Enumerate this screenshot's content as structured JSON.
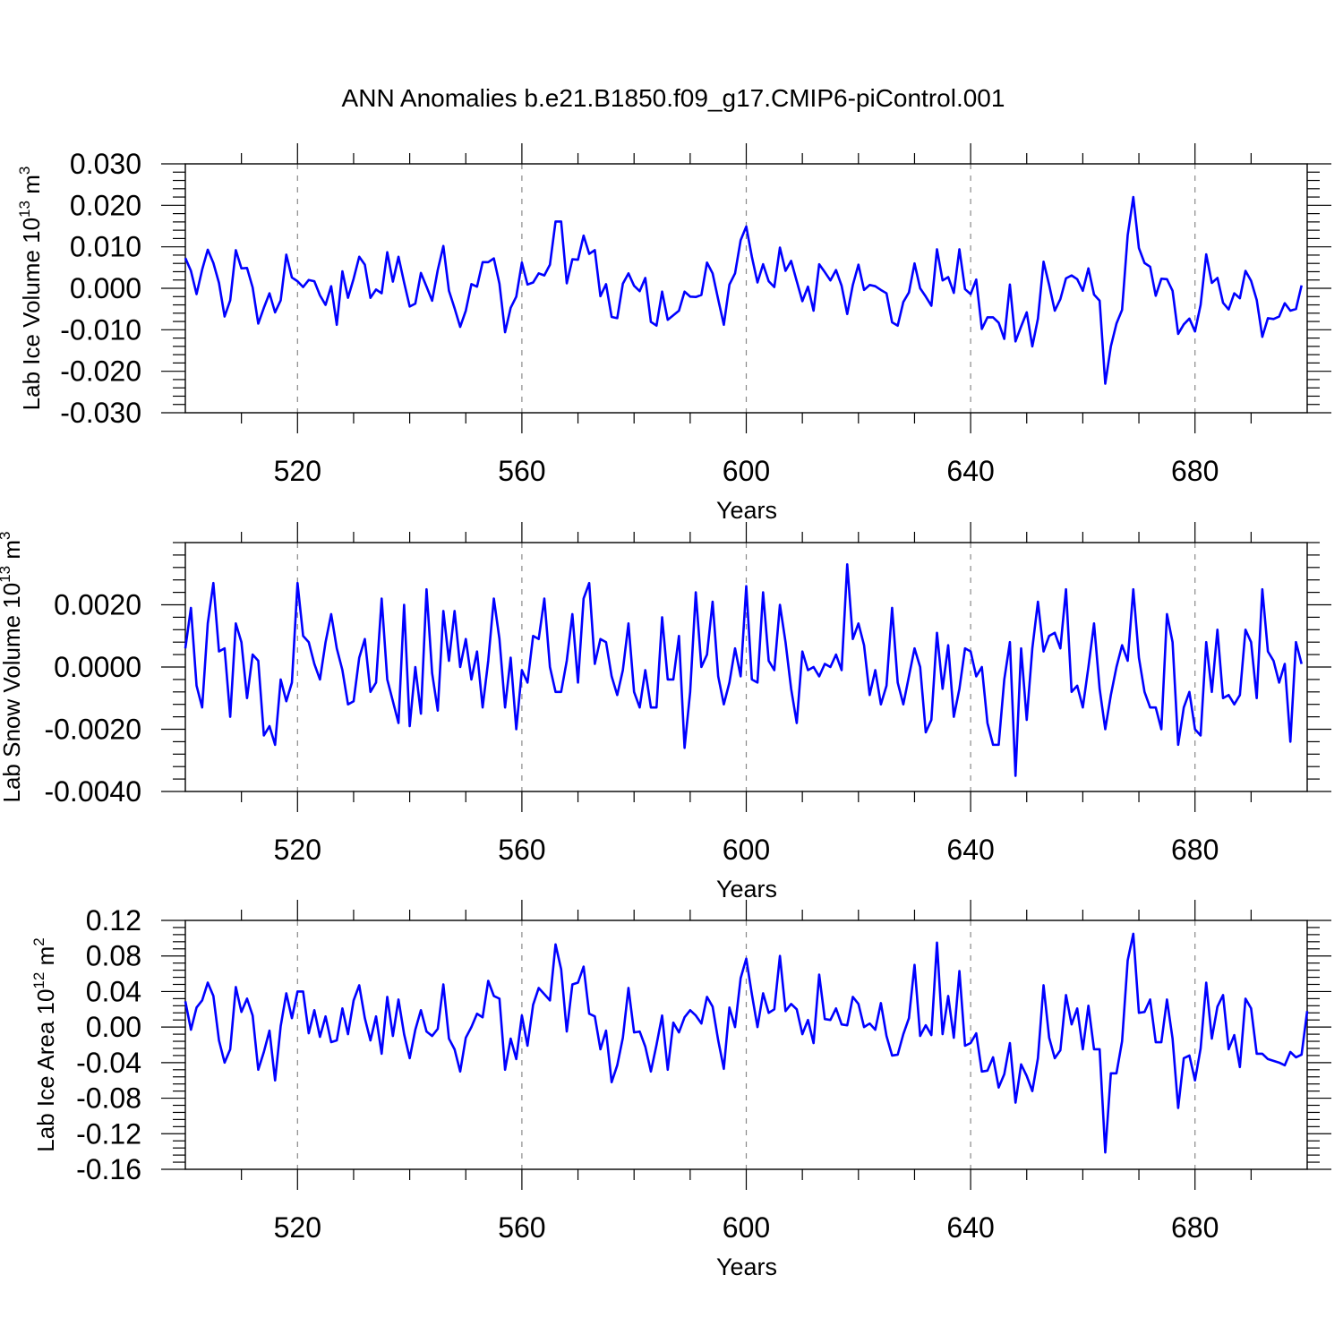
{
  "title": "ANN Anomalies b.e21.B1850.f09_g17.CMIP6-piControl.001",
  "colors": {
    "series": "#0000ff",
    "frame": "#000000",
    "grid": "#888888"
  },
  "chart_data": [
    {
      "type": "line",
      "ylabel_main": "Lab Ice Volume 10",
      "ylabel_exp": "13",
      "ylabel_unit": " m",
      "ylabel_unit_exp": "3",
      "xlabel": "Years",
      "xlim": [
        500,
        700
      ],
      "ylim": [
        -0.03,
        0.03
      ],
      "x_ticks": [
        520,
        560,
        600,
        640,
        680
      ],
      "x_tick_labels": [
        "520",
        "560",
        "600",
        "640",
        "680"
      ],
      "y_ticks": [
        -0.03,
        -0.02,
        -0.01,
        0.0,
        0.01,
        0.02,
        0.03
      ],
      "y_tick_labels": [
        "-0.030",
        "-0.020",
        "-0.010",
        "0.000",
        "0.010",
        "0.020",
        "0.030"
      ],
      "grid": "vertical dashed at x ticks",
      "series": [
        {
          "x_start": 500,
          "x_step": 1,
          "values": [
            0.0073,
            0.0042,
            -0.0014,
            0.0045,
            0.0093,
            0.0061,
            0.0013,
            -0.0068,
            -0.0029,
            0.0092,
            0.0048,
            0.0049,
            0.0002,
            -0.0085,
            -0.0047,
            -0.0012,
            -0.0058,
            -0.0029,
            0.0081,
            0.0026,
            0.0017,
            0.0003,
            0.002,
            0.0017,
            -0.0017,
            -0.004,
            0.0005,
            -0.0088,
            0.0041,
            -0.0023,
            0.0023,
            0.0076,
            0.0057,
            -0.0023,
            -0.0003,
            -0.0012,
            0.0087,
            0.0016,
            0.0076,
            0.0014,
            -0.0044,
            -0.0037,
            0.0037,
            0.0004,
            -0.003,
            0.0044,
            0.0102,
            -0.0006,
            -0.0048,
            -0.0093,
            -0.0054,
            0.001,
            0.0004,
            0.0063,
            0.0063,
            0.0072,
            0.0011,
            -0.0106,
            -0.0047,
            -0.002,
            0.0062,
            0.0009,
            0.0014,
            0.0036,
            0.0031,
            0.0057,
            0.0161,
            0.0161,
            0.0012,
            0.007,
            0.0069,
            0.0127,
            0.0083,
            0.0092,
            -0.0019,
            0.001,
            -0.0069,
            -0.0072,
            0.0011,
            0.0036,
            0.0006,
            -0.0007,
            0.0025,
            -0.0081,
            -0.009,
            -0.0008,
            -0.0076,
            -0.0065,
            -0.0054,
            -0.0008,
            -0.002,
            -0.0021,
            -0.0016,
            0.0062,
            0.0036,
            -0.0027,
            -0.0088,
            0.0009,
            0.0036,
            0.0116,
            0.0149,
            0.0076,
            0.0014,
            0.0058,
            0.0017,
            0.0003,
            0.0098,
            0.0042,
            0.0066,
            0.0017,
            -0.0031,
            0.0004,
            -0.0054,
            0.0058,
            0.0039,
            0.0019,
            0.0044,
            0.0006,
            -0.0062,
            0.0008,
            0.0057,
            -0.0004,
            0.0008,
            0.0005,
            -0.0004,
            -0.0012,
            -0.0082,
            -0.009,
            -0.0033,
            -0.001,
            0.006,
            0.0,
            -0.002,
            -0.0042,
            0.0094,
            0.0019,
            0.0027,
            -0.0011,
            0.0094,
            -0.0002,
            -0.0014,
            0.0021,
            -0.0098,
            -0.007,
            -0.007,
            -0.0083,
            -0.0122,
            0.0009,
            -0.0128,
            -0.0092,
            -0.0058,
            -0.014,
            -0.0073,
            0.0064,
            0.0008,
            -0.0054,
            -0.0026,
            0.0024,
            0.0031,
            0.0022,
            -0.0006,
            0.0048,
            -0.0015,
            -0.003,
            -0.023,
            -0.014,
            -0.0085,
            -0.0052,
            0.0128,
            0.022,
            0.0097,
            0.0061,
            0.0052,
            -0.0018,
            0.0023,
            0.0022,
            -0.0006,
            -0.011,
            -0.0087,
            -0.0073,
            -0.0104,
            -0.004,
            0.0082,
            0.0013,
            0.0025,
            -0.0035,
            -0.0051,
            -0.0012,
            -0.0024,
            0.0042,
            0.0018,
            -0.0028,
            -0.0117,
            -0.0072,
            -0.0074,
            -0.0068,
            -0.0036,
            -0.0054,
            -0.005,
            0.0007
          ]
        }
      ]
    },
    {
      "type": "line",
      "ylabel_main": "Lab Snow Volume 10",
      "ylabel_exp": "13",
      "ylabel_unit": " m",
      "ylabel_unit_exp": "3",
      "xlabel": "Years",
      "xlim": [
        500,
        700
      ],
      "ylim": [
        -0.004,
        0.004
      ],
      "x_ticks": [
        520,
        560,
        600,
        640,
        680
      ],
      "x_tick_labels": [
        "520",
        "560",
        "600",
        "640",
        "680"
      ],
      "y_ticks": [
        -0.004,
        -0.002,
        0.0,
        0.002
      ],
      "y_tick_labels": [
        "-0.0040",
        "-0.0020",
        "0.0000",
        "0.0020"
      ],
      "grid": "vertical dashed at x ticks",
      "series": [
        {
          "x_start": 500,
          "x_step": 1,
          "values": [
            0.0006,
            0.0019,
            -0.0006,
            -0.0013,
            0.0014,
            0.0027,
            0.0005,
            0.0006,
            -0.0016,
            0.0014,
            0.0008,
            -0.001,
            0.0004,
            0.0002,
            -0.0022,
            -0.0019,
            -0.0025,
            -0.0004,
            -0.0011,
            -0.0005,
            0.0027,
            0.001,
            0.0008,
            0.0001,
            -0.0004,
            0.0008,
            0.0017,
            0.0006,
            -0.0001,
            -0.0012,
            -0.0011,
            0.0003,
            0.0009,
            -0.0008,
            -0.0005,
            0.0022,
            -0.0004,
            -0.0011,
            -0.0018,
            0.002,
            -0.0019,
            0.0,
            -0.0015,
            0.0025,
            -0.0002,
            -0.0014,
            0.0018,
            0.0002,
            0.0018,
            0.0,
            0.0009,
            -0.0004,
            0.0005,
            -0.0013,
            0.0002,
            0.0022,
            0.0009,
            -0.0013,
            0.0003,
            -0.002,
            -0.0001,
            -0.0005,
            0.001,
            0.0009,
            0.0022,
            0.0,
            -0.0008,
            -0.0008,
            0.0002,
            0.0017,
            -0.0005,
            0.0022,
            0.0027,
            0.0001,
            0.0009,
            0.0008,
            -0.0003,
            -0.0009,
            -0.0001,
            0.0014,
            -0.0008,
            -0.0013,
            -0.0001,
            -0.0013,
            -0.0013,
            0.0016,
            -0.0004,
            -0.0004,
            0.001,
            -0.0026,
            -0.0008,
            0.0024,
            0.0,
            0.0004,
            0.0021,
            -0.0003,
            -0.0012,
            -0.0005,
            0.0006,
            -0.0003,
            0.0026,
            -0.0004,
            -0.0005,
            0.0024,
            0.0002,
            -0.0001,
            0.002,
            0.0008,
            -0.0007,
            -0.0018,
            0.0005,
            -0.0001,
            0.0,
            -0.0003,
            0.0001,
            0.0,
            0.0004,
            -0.0001,
            0.0033,
            0.0009,
            0.0014,
            0.0007,
            -0.0009,
            -0.0001,
            -0.0012,
            -0.0006,
            0.0019,
            -0.0005,
            -0.0012,
            -0.0003,
            0.0006,
            0.0,
            -0.0021,
            -0.0017,
            0.0011,
            -0.0007,
            0.0007,
            -0.0016,
            -0.0007,
            0.0006,
            0.0005,
            -0.0003,
            0.0,
            -0.0018,
            -0.0025,
            -0.0025,
            -0.0004,
            0.0008,
            -0.0035,
            0.0006,
            -0.0017,
            0.0006,
            0.0021,
            0.0005,
            0.001,
            0.0011,
            0.0006,
            0.0025,
            -0.0008,
            -0.0006,
            -0.0013,
            0.0,
            0.0014,
            -0.0007,
            -0.002,
            -0.0009,
            0.0,
            0.0007,
            0.0002,
            0.0025,
            0.0003,
            -0.0008,
            -0.0013,
            -0.0013,
            -0.002,
            0.0017,
            0.0008,
            -0.0025,
            -0.0013,
            -0.0008,
            -0.002,
            -0.0022,
            0.0008,
            -0.0008,
            0.0012,
            -0.001,
            -0.0009,
            -0.0012,
            -0.0009,
            0.0012,
            0.0008,
            -0.001,
            0.0025,
            0.0005,
            0.0002,
            -0.0005,
            0.0001,
            -0.0024,
            0.0008,
            0.0001
          ]
        }
      ]
    },
    {
      "type": "line",
      "ylabel_main": "Lab Ice Area 10",
      "ylabel_exp": "12",
      "ylabel_unit": " m",
      "ylabel_unit_exp": "2",
      "xlabel": "Years",
      "xlim": [
        500,
        700
      ],
      "ylim": [
        -0.16,
        0.12
      ],
      "x_ticks": [
        520,
        560,
        600,
        640,
        680
      ],
      "x_tick_labels": [
        "520",
        "560",
        "600",
        "640",
        "680"
      ],
      "y_ticks": [
        -0.16,
        -0.12,
        -0.08,
        -0.04,
        0.0,
        0.04,
        0.08,
        0.12
      ],
      "y_tick_labels": [
        "-0.16",
        "-0.12",
        "-0.08",
        "-0.04",
        "0.00",
        "0.04",
        "0.08",
        "0.12"
      ],
      "grid": "vertical dashed at x ticks",
      "series": [
        {
          "x_start": 500,
          "x_step": 1,
          "values": [
            0.029,
            -0.003,
            0.022,
            0.03,
            0.05,
            0.035,
            -0.015,
            -0.04,
            -0.025,
            0.045,
            0.017,
            0.032,
            0.013,
            -0.048,
            -0.028,
            -0.004,
            -0.06,
            0.001,
            0.038,
            0.01,
            0.04,
            0.04,
            -0.007,
            0.019,
            -0.011,
            0.012,
            -0.017,
            -0.015,
            0.021,
            -0.008,
            0.03,
            0.047,
            0.01,
            -0.015,
            0.012,
            -0.03,
            0.034,
            -0.01,
            0.031,
            -0.008,
            -0.035,
            -0.003,
            0.019,
            -0.005,
            -0.01,
            -0.002,
            0.048,
            -0.013,
            -0.025,
            -0.05,
            -0.012,
            0.0,
            0.015,
            0.011,
            0.052,
            0.035,
            0.032,
            -0.048,
            -0.013,
            -0.036,
            0.013,
            -0.021,
            0.025,
            0.044,
            0.037,
            0.03,
            0.093,
            0.065,
            -0.005,
            0.048,
            0.05,
            0.068,
            0.015,
            0.012,
            -0.025,
            -0.004,
            -0.062,
            -0.043,
            -0.012,
            0.044,
            -0.006,
            -0.005,
            -0.022,
            -0.05,
            -0.02,
            0.013,
            -0.048,
            0.005,
            -0.006,
            0.011,
            0.019,
            0.013,
            0.004,
            0.034,
            0.023,
            -0.015,
            -0.047,
            0.022,
            0.0,
            0.055,
            0.077,
            0.037,
            0.0,
            0.038,
            0.016,
            0.02,
            0.08,
            0.018,
            0.026,
            0.02,
            -0.008,
            0.008,
            -0.018,
            0.059,
            0.009,
            0.008,
            0.021,
            0.003,
            0.002,
            0.034,
            0.026,
            0.0,
            0.004,
            -0.003,
            0.027,
            -0.01,
            -0.032,
            -0.031,
            -0.008,
            0.01,
            0.07,
            -0.01,
            0.002,
            -0.009,
            0.095,
            -0.008,
            0.035,
            -0.012,
            0.063,
            -0.021,
            -0.018,
            -0.007,
            -0.05,
            -0.049,
            -0.034,
            -0.068,
            -0.053,
            -0.018,
            -0.085,
            -0.042,
            -0.055,
            -0.072,
            -0.035,
            0.047,
            -0.012,
            -0.035,
            -0.026,
            0.036,
            0.003,
            0.021,
            -0.025,
            0.024,
            -0.025,
            -0.025,
            -0.141,
            -0.052,
            -0.052,
            -0.016,
            0.075,
            0.105,
            0.016,
            0.017,
            0.031,
            -0.017,
            -0.017,
            0.031,
            -0.013,
            -0.091,
            -0.035,
            -0.032,
            -0.06,
            -0.024,
            0.05,
            -0.013,
            0.023,
            0.036,
            -0.025,
            -0.009,
            -0.045,
            0.032,
            0.021,
            -0.03,
            -0.03,
            -0.036,
            -0.038,
            -0.04,
            -0.043,
            -0.028,
            -0.034,
            -0.031,
            0.018
          ]
        }
      ]
    }
  ]
}
